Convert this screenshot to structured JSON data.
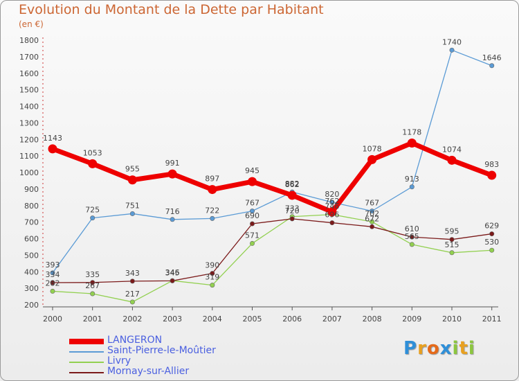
{
  "title": "Evolution du Montant de la Dette par Habitant",
  "unit_label": "(en €)",
  "brand": {
    "letters": [
      "P",
      "r",
      "o",
      "x",
      "i",
      "t",
      "i"
    ],
    "colors": [
      "#2f8fd8",
      "#e8a020",
      "#e56a1a",
      "#2f8fd8",
      "#8cc63f",
      "#e8a020",
      "#8cc63f"
    ]
  },
  "chart_data": {
    "type": "line",
    "x": [
      "2000",
      "2001",
      "2002",
      "2003",
      "2004",
      "2005",
      "2006",
      "2007",
      "2008",
      "2009",
      "2010",
      "2011"
    ],
    "ylim": [
      200,
      1800
    ],
    "yticks": [
      200,
      300,
      400,
      500,
      600,
      700,
      800,
      900,
      1000,
      1100,
      1200,
      1300,
      1400,
      1500,
      1600,
      1700,
      1800
    ],
    "grid": false,
    "legend_position": "bottom-left",
    "series": [
      {
        "name": "LANGERON",
        "color": "#ee0000",
        "thick": true,
        "values": [
          1143,
          1053,
          955,
          991,
          897,
          945,
          862,
          762,
          1078,
          1178,
          1074,
          983
        ]
      },
      {
        "name": "Saint-Pierre-le-Moûtier",
        "color": "#5b9bd5",
        "thick": false,
        "values": [
          393,
          725,
          751,
          716,
          722,
          767,
          882,
          820,
          767,
          913,
          1740,
          1646
        ]
      },
      {
        "name": "Livry",
        "color": "#92d050",
        "thick": false,
        "values": [
          282,
          267,
          217,
          346,
          319,
          571,
          733,
          746,
          702,
          565,
          515,
          530
        ]
      },
      {
        "name": "Mornay-sur-Allier",
        "color": "#7b1a1a",
        "thick": false,
        "values": [
          334,
          335,
          343,
          345,
          390,
          690,
          720,
          696,
          672,
          610,
          595,
          629
        ]
      }
    ]
  }
}
